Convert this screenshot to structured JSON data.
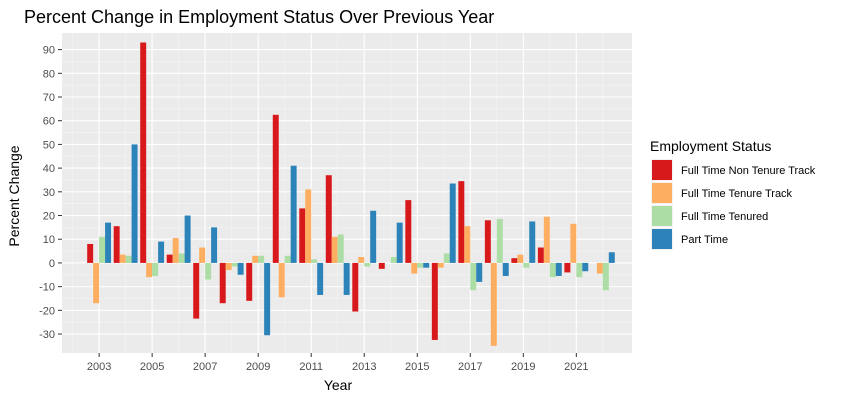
{
  "chart_data": {
    "type": "bar",
    "title": "Percent Change in Employment Status Over Previous Year",
    "xlabel": "Year",
    "ylabel": "Percent Change",
    "ylim": [
      -38,
      97
    ],
    "y_ticks": [
      -30,
      -20,
      -10,
      0,
      10,
      20,
      30,
      40,
      50,
      60,
      70,
      80,
      90
    ],
    "x_ticks": [
      2003,
      2005,
      2007,
      2009,
      2011,
      2013,
      2015,
      2017,
      2019,
      2021
    ],
    "xlim": [
      2001.6,
      2023.1
    ],
    "grid": true,
    "legend": {
      "title": "Employment Status",
      "position": "right"
    },
    "categories": [
      2003,
      2004,
      2005,
      2006,
      2007,
      2008,
      2009,
      2010,
      2011,
      2012,
      2013,
      2014,
      2015,
      2016,
      2017,
      2018,
      2019,
      2020,
      2021,
      2022
    ],
    "series": [
      {
        "name": "Full Time Non Tenure Track",
        "color": "#d7191c",
        "values": [
          8,
          15.5,
          93,
          3.5,
          -23.5,
          -17,
          -16,
          62.5,
          23,
          37,
          -20.5,
          -2.5,
          26.5,
          -32.5,
          34.5,
          18,
          2,
          6.5,
          -4,
          0
        ]
      },
      {
        "name": "Full Time Tenure Track",
        "color": "#fdae61",
        "values": [
          -17,
          3.5,
          -6,
          10.5,
          6.5,
          -3,
          3,
          -14.5,
          31,
          11,
          2.5,
          0,
          -4.5,
          -2,
          15.5,
          -35,
          3.5,
          19.5,
          16.5,
          -4.5
        ]
      },
      {
        "name": "Full Time Tenured",
        "color": "#abdda4",
        "values": [
          11,
          3,
          -5.5,
          4,
          -7,
          -1.5,
          3,
          3,
          1.5,
          12,
          -1.5,
          2.5,
          -2,
          4,
          -11.5,
          18.5,
          -2,
          -6,
          -6,
          -11.5
        ]
      },
      {
        "name": "Part Time",
        "color": "#2b83ba",
        "values": [
          17,
          50,
          9,
          20,
          15,
          -5,
          -30.5,
          41,
          -13.5,
          -13.5,
          22,
          17,
          -2,
          33.5,
          -8,
          -5.5,
          17.5,
          -5.5,
          -3.5,
          4.5
        ]
      }
    ]
  }
}
